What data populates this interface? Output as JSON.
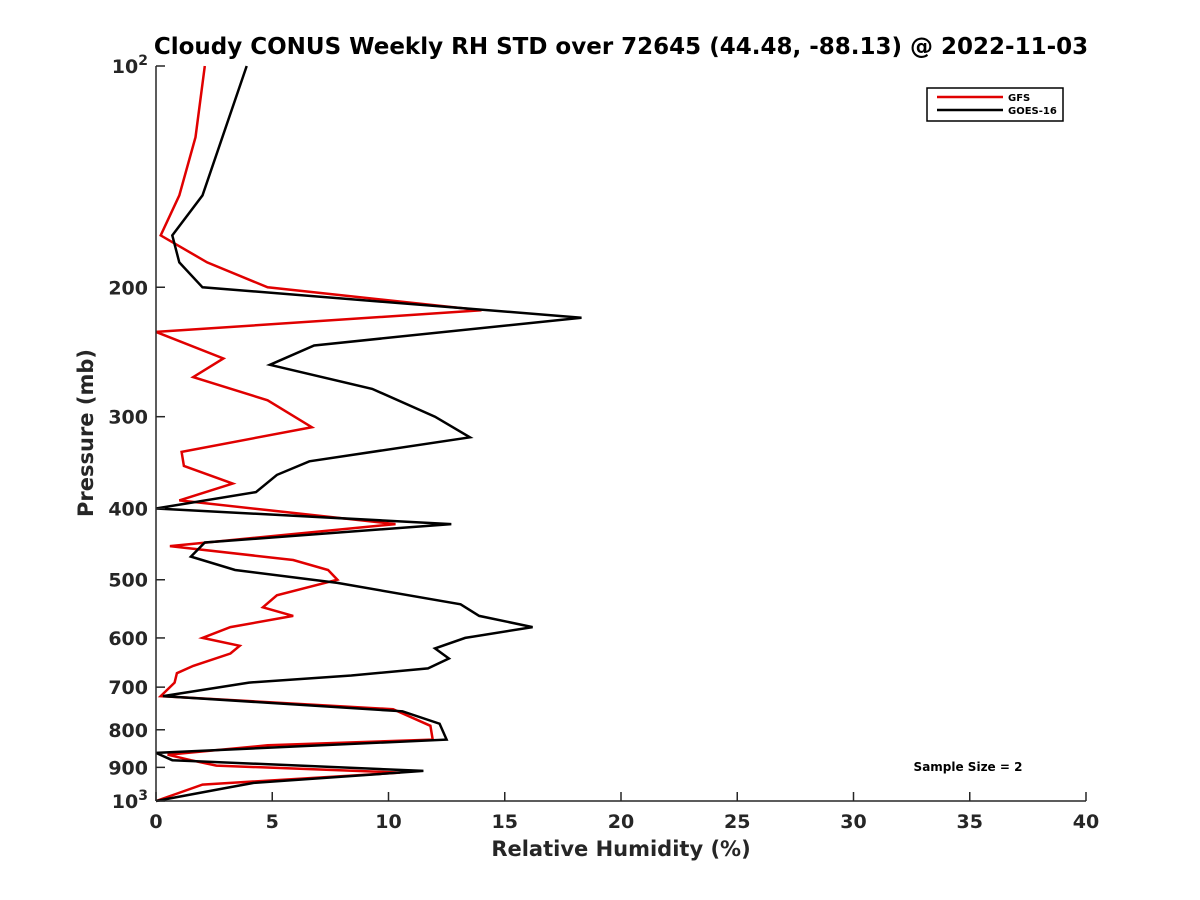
{
  "chart_data": {
    "type": "line",
    "title": "Cloudy CONUS Weekly RH STD over 72645 (44.48, -88.13) @ 2022-11-03",
    "xlabel": "Relative Humidity (%)",
    "ylabel": "Pressure (mb)",
    "xlim": [
      0,
      40
    ],
    "ylim": [
      100,
      1000
    ],
    "y_scale": "log",
    "y_reversed": true,
    "x_ticks": [
      "0",
      "5",
      "10",
      "15",
      "20",
      "25",
      "30",
      "35",
      "40"
    ],
    "y_ticks": [
      {
        "value": 100,
        "label": "10",
        "sup": "2"
      },
      {
        "value": 200,
        "label": "200"
      },
      {
        "value": 300,
        "label": "300"
      },
      {
        "value": 400,
        "label": "400"
      },
      {
        "value": 500,
        "label": "500"
      },
      {
        "value": 600,
        "label": "600"
      },
      {
        "value": 700,
        "label": "700"
      },
      {
        "value": 800,
        "label": "800"
      },
      {
        "value": 900,
        "label": "900"
      },
      {
        "value": 1000,
        "label": "10",
        "sup": "3"
      }
    ],
    "grid": false,
    "legend_position": "top-right",
    "annotation": "Sample Size = 2",
    "series": [
      {
        "name": "GFS",
        "color": "#e00000",
        "points": [
          [
            2.1,
            100
          ],
          [
            1.7,
            125
          ],
          [
            1.0,
            150
          ],
          [
            0.2,
            170
          ],
          [
            2.2,
            185
          ],
          [
            4.8,
            200
          ],
          [
            14.0,
            215
          ],
          [
            0.0,
            230
          ],
          [
            2.9,
            250
          ],
          [
            1.6,
            265
          ],
          [
            4.8,
            285
          ],
          [
            6.7,
            310
          ],
          [
            1.1,
            335
          ],
          [
            1.2,
            350
          ],
          [
            3.3,
            370
          ],
          [
            1.0,
            390
          ],
          [
            10.3,
            420
          ],
          [
            0.6,
            450
          ],
          [
            5.9,
            470
          ],
          [
            7.4,
            485
          ],
          [
            7.8,
            500
          ],
          [
            5.2,
            525
          ],
          [
            4.6,
            545
          ],
          [
            5.9,
            560
          ],
          [
            3.2,
            580
          ],
          [
            2.0,
            600
          ],
          [
            3.6,
            615
          ],
          [
            3.2,
            630
          ],
          [
            1.6,
            655
          ],
          [
            0.9,
            670
          ],
          [
            0.8,
            690
          ],
          [
            0.2,
            720
          ],
          [
            10.2,
            750
          ],
          [
            11.8,
            790
          ],
          [
            11.9,
            825
          ],
          [
            4.8,
            840
          ],
          [
            0.5,
            865
          ],
          [
            1.5,
            880
          ],
          [
            2.6,
            895
          ],
          [
            10.5,
            915
          ],
          [
            2.0,
            950
          ],
          [
            0.0,
            1000
          ]
        ]
      },
      {
        "name": "GOES-16",
        "color": "#000000",
        "points": [
          [
            3.9,
            100
          ],
          [
            2.0,
            150
          ],
          [
            0.7,
            170
          ],
          [
            1.0,
            185
          ],
          [
            2.0,
            200
          ],
          [
            18.3,
            220
          ],
          [
            6.8,
            240
          ],
          [
            4.9,
            255
          ],
          [
            9.3,
            275
          ],
          [
            12.0,
            300
          ],
          [
            13.5,
            320
          ],
          [
            6.6,
            345
          ],
          [
            5.2,
            360
          ],
          [
            4.3,
            380
          ],
          [
            0.0,
            400
          ],
          [
            12.7,
            420
          ],
          [
            2.1,
            445
          ],
          [
            1.5,
            465
          ],
          [
            3.4,
            485
          ],
          [
            7.8,
            505
          ],
          [
            13.1,
            540
          ],
          [
            13.9,
            560
          ],
          [
            16.2,
            580
          ],
          [
            13.3,
            600
          ],
          [
            12.0,
            620
          ],
          [
            12.6,
            640
          ],
          [
            11.7,
            660
          ],
          [
            8.4,
            675
          ],
          [
            4.0,
            690
          ],
          [
            0.3,
            720
          ],
          [
            10.6,
            755
          ],
          [
            12.2,
            785
          ],
          [
            12.5,
            825
          ],
          [
            0.0,
            860
          ],
          [
            0.7,
            880
          ],
          [
            11.5,
            910
          ],
          [
            4.2,
            945
          ],
          [
            3.0,
            960
          ],
          [
            0.0,
            1000
          ]
        ]
      }
    ]
  }
}
